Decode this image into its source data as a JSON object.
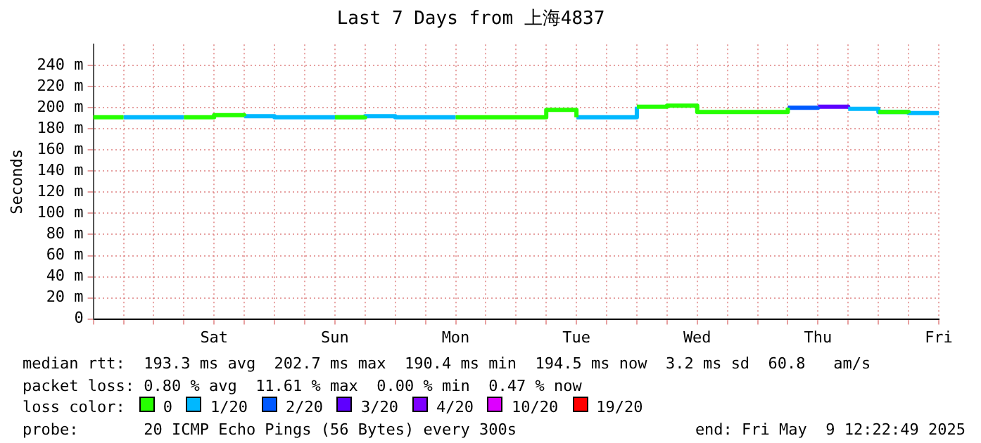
{
  "chart_data": {
    "type": "step",
    "title": "Last 7 Days from 上海4837",
    "ylabel": "Seconds",
    "categories": [
      null,
      null,
      null,
      null,
      "Sat",
      null,
      null,
      null,
      "Sun",
      null,
      null,
      null,
      "Mon",
      null,
      null,
      null,
      "Tue",
      null,
      null,
      null,
      "Wed",
      null,
      null,
      null,
      "Thu",
      null,
      null,
      null,
      "Fri"
    ],
    "ylim": [
      0,
      260
    ],
    "yticks": [
      0,
      {
        "value": 20,
        "label": "20 m"
      },
      {
        "value": 40,
        "label": "40 m"
      },
      {
        "value": 60,
        "label": "60 m"
      },
      {
        "value": 80,
        "label": "80 m"
      },
      {
        "value": 100,
        "label": "100 m"
      },
      {
        "value": 120,
        "label": "120 m"
      },
      {
        "value": 140,
        "label": "140 m"
      },
      {
        "value": 160,
        "label": "160 m"
      },
      {
        "value": 180,
        "label": "180 m"
      },
      {
        "value": 200,
        "label": "200 m"
      },
      {
        "value": 220,
        "label": "220 m"
      },
      {
        "value": 240,
        "label": "240 m"
      }
    ],
    "grid": true,
    "legend": "bottom",
    "legend_title": "loss color:",
    "series": [
      {
        "name": "0",
        "color": "#26ff00",
        "values": [
          191,
          191,
          null,
          191,
          193,
          192,
          null,
          null,
          191,
          192,
          null,
          null,
          191,
          191,
          191,
          198,
          191,
          null,
          201,
          202,
          196,
          196,
          196,
          200,
          null,
          null,
          196,
          195,
          null
        ]
      },
      {
        "name": "1/20",
        "color": "#00b8ff",
        "values": [
          null,
          191,
          191,
          191,
          null,
          192,
          191,
          191,
          191,
          192,
          191,
          191,
          191,
          null,
          null,
          null,
          191,
          191,
          201,
          null,
          null,
          null,
          null,
          null,
          null,
          199,
          196,
          195,
          195
        ]
      },
      {
        "name": "2/20",
        "color": "#0059ff",
        "values": [
          null,
          null,
          null,
          null,
          null,
          null,
          null,
          null,
          null,
          null,
          null,
          null,
          null,
          null,
          null,
          null,
          null,
          null,
          null,
          null,
          null,
          null,
          null,
          200,
          201,
          null,
          null,
          null,
          null
        ]
      },
      {
        "name": "3/20",
        "color": "#5e00ff",
        "values": [
          null,
          null,
          null,
          null,
          null,
          null,
          null,
          null,
          null,
          null,
          null,
          null,
          null,
          null,
          null,
          null,
          null,
          null,
          null,
          null,
          null,
          null,
          null,
          null,
          201,
          199,
          null,
          null,
          null
        ]
      },
      {
        "name": "4/20",
        "color": "#7e00ff",
        "values": [
          null,
          null,
          null,
          null,
          null,
          null,
          null,
          null,
          null,
          null,
          null,
          null,
          null,
          null,
          null,
          null,
          null,
          null,
          null,
          null,
          null,
          null,
          null,
          null,
          null,
          null,
          null,
          null,
          null
        ]
      },
      {
        "name": "10/20",
        "color": "#dd00ff",
        "values": [
          null,
          null,
          null,
          null,
          null,
          null,
          null,
          null,
          null,
          null,
          null,
          null,
          null,
          null,
          null,
          null,
          null,
          null,
          null,
          null,
          null,
          null,
          null,
          null,
          null,
          null,
          null,
          null,
          null
        ]
      },
      {
        "name": "19/20",
        "color": "#ff0000",
        "values": [
          null,
          null,
          null,
          null,
          null,
          null,
          null,
          null,
          null,
          null,
          null,
          null,
          null,
          null,
          null,
          null,
          null,
          null,
          null,
          null,
          null,
          null,
          null,
          null,
          null,
          null,
          null,
          null,
          null
        ]
      }
    ],
    "annotations": [
      "median rtt:  193.3 ms avg  202.7 ms max  190.4 ms min  194.5 ms now  3.2 ms sd  60.8   am/s",
      "packet loss: 0.80 % avg  11.61 % max  0.00 % min  0.47 % now",
      "probe:       20 ICMP Echo Pings (56 Bytes) every 300s",
      "end: Fri May  9 12:22:49 2025"
    ]
  }
}
